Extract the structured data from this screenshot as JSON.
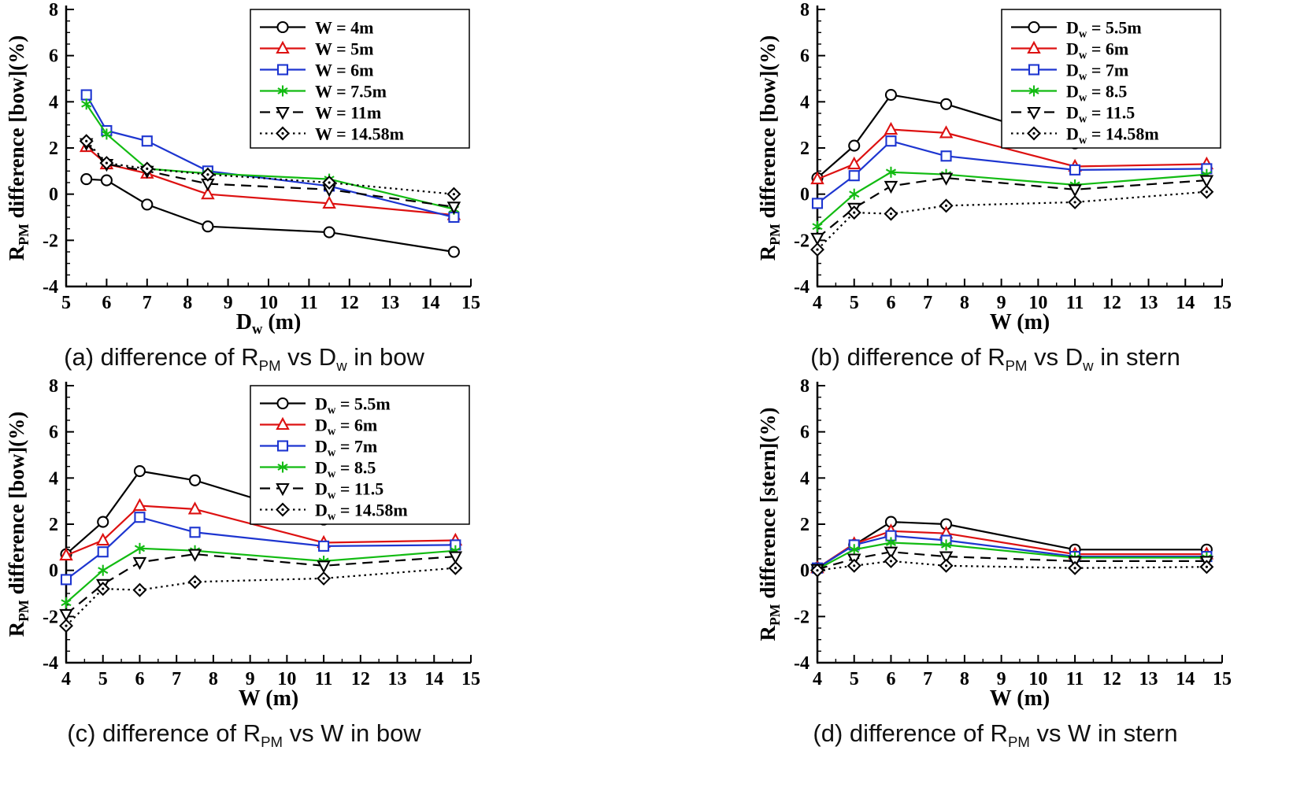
{
  "colors": {
    "black": "#000000",
    "red": "#dd1111",
    "blue": "#1d35d0",
    "green": "#12bb12"
  },
  "panels": [
    {
      "caption": [
        {
          "t": "(a) difference of R"
        },
        {
          "t": "PM",
          "sub": true
        },
        {
          "t": " vs D"
        },
        {
          "t": "w",
          "sub": true
        },
        {
          "t": " in bow"
        }
      ]
    },
    {
      "caption": [
        {
          "t": "(b) difference of R"
        },
        {
          "t": "PM",
          "sub": true
        },
        {
          "t": " vs D"
        },
        {
          "t": "w",
          "sub": true
        },
        {
          "t": " in stern"
        }
      ]
    },
    {
      "caption": [
        {
          "t": "(c) difference of R"
        },
        {
          "t": "PM",
          "sub": true
        },
        {
          "t": " vs W in bow"
        }
      ]
    },
    {
      "caption": [
        {
          "t": "(d) difference of R"
        },
        {
          "t": "PM",
          "sub": true
        },
        {
          "t": " vs W in stern"
        }
      ]
    }
  ],
  "chart_data": [
    {
      "type": "line",
      "xlabel": [
        {
          "t": "D"
        },
        {
          "t": "w",
          "sub": true
        },
        {
          "t": " (m)"
        }
      ],
      "ylabel": [
        {
          "t": "R"
        },
        {
          "t": "PM",
          "sub": true
        },
        {
          "t": " difference [bow](%)"
        }
      ],
      "xlim": [
        5,
        15
      ],
      "ylim": [
        -4,
        8
      ],
      "xticks": [
        5,
        6,
        7,
        8,
        9,
        10,
        11,
        12,
        13,
        14,
        15
      ],
      "yticks": [
        -4,
        -2,
        0,
        2,
        4,
        6,
        8
      ],
      "x_minor": 0.5,
      "y_minor": 0.5,
      "grid": false,
      "legend": {
        "show": true,
        "position": "top-right"
      },
      "series": [
        {
          "label": [
            {
              "t": "W = 4m"
            }
          ],
          "color": "black",
          "marker": "circle",
          "line": "solid",
          "x": [
            5.5,
            6,
            7,
            8.5,
            11.5,
            14.58
          ],
          "y": [
            0.65,
            0.6,
            -0.45,
            -1.4,
            -1.65,
            -2.5
          ]
        },
        {
          "label": [
            {
              "t": "W = 5m"
            }
          ],
          "color": "red",
          "marker": "triangle",
          "line": "solid",
          "x": [
            5.5,
            6,
            7,
            8.5,
            11.5,
            14.58
          ],
          "y": [
            2.05,
            1.3,
            0.9,
            0.0,
            -0.4,
            -0.9
          ]
        },
        {
          "label": [
            {
              "t": "W = 6m"
            }
          ],
          "color": "blue",
          "marker": "square",
          "line": "solid",
          "x": [
            5.5,
            6,
            7,
            8.5,
            11.5,
            14.58
          ],
          "y": [
            4.3,
            2.75,
            2.3,
            1.0,
            0.35,
            -1.0
          ]
        },
        {
          "label": [
            {
              "t": "W = 7.5m"
            }
          ],
          "color": "green",
          "marker": "asterisk",
          "line": "solid",
          "x": [
            5.5,
            6,
            7,
            8.5,
            11.5,
            14.58
          ],
          "y": [
            3.9,
            2.6,
            1.1,
            0.9,
            0.65,
            -0.65
          ]
        },
        {
          "label": [
            {
              "t": "W = 11m"
            }
          ],
          "color": "black",
          "marker": "triangle-down",
          "line": "dashed",
          "x": [
            5.5,
            6,
            7,
            8.5,
            11.5,
            14.58
          ],
          "y": [
            2.2,
            1.3,
            1.0,
            0.45,
            0.2,
            -0.55
          ]
        },
        {
          "label": [
            {
              "t": "W = 14.58m"
            }
          ],
          "color": "black",
          "marker": "diamond",
          "line": "dotted",
          "x": [
            5.5,
            6,
            7,
            8.5,
            11.5,
            14.58
          ],
          "y": [
            2.3,
            1.35,
            1.1,
            0.85,
            0.5,
            0.0
          ]
        }
      ]
    },
    {
      "type": "line",
      "xlabel": [
        {
          "t": "W (m)"
        }
      ],
      "ylabel": [
        {
          "t": "R"
        },
        {
          "t": "PM",
          "sub": true
        },
        {
          "t": " difference [bow](%)"
        }
      ],
      "xlim": [
        4,
        15
      ],
      "ylim": [
        -4,
        8
      ],
      "xticks": [
        4,
        5,
        6,
        7,
        8,
        9,
        10,
        11,
        12,
        13,
        14,
        15
      ],
      "yticks": [
        -4,
        -2,
        0,
        2,
        4,
        6,
        8
      ],
      "x_minor": 0.5,
      "y_minor": 0.5,
      "grid": false,
      "legend": {
        "show": true,
        "position": "top-right"
      },
      "series": [
        {
          "label": [
            {
              "t": "D"
            },
            {
              "t": "w",
              "sub": true
            },
            {
              "t": " = 5.5m"
            }
          ],
          "color": "black",
          "marker": "circle",
          "line": "solid",
          "x": [
            4,
            5,
            6,
            7.5,
            11,
            14.58
          ],
          "y": [
            0.7,
            2.1,
            4.3,
            3.9,
            2.2,
            2.35
          ]
        },
        {
          "label": [
            {
              "t": "D"
            },
            {
              "t": "w",
              "sub": true
            },
            {
              "t": " = 6m"
            }
          ],
          "color": "red",
          "marker": "triangle",
          "line": "solid",
          "x": [
            4,
            5,
            6,
            7.5,
            11,
            14.58
          ],
          "y": [
            0.65,
            1.3,
            2.8,
            2.65,
            1.2,
            1.3
          ]
        },
        {
          "label": [
            {
              "t": "D"
            },
            {
              "t": "w",
              "sub": true
            },
            {
              "t": " = 7m"
            }
          ],
          "color": "blue",
          "marker": "square",
          "line": "solid",
          "x": [
            4,
            5,
            6,
            7.5,
            11,
            14.58
          ],
          "y": [
            -0.4,
            0.8,
            2.3,
            1.65,
            1.05,
            1.1
          ]
        },
        {
          "label": [
            {
              "t": "D"
            },
            {
              "t": "w",
              "sub": true
            },
            {
              "t": " =  8.5"
            }
          ],
          "color": "green",
          "marker": "asterisk",
          "line": "solid",
          "x": [
            4,
            5,
            6,
            7.5,
            11,
            14.58
          ],
          "y": [
            -1.4,
            0.0,
            0.95,
            0.85,
            0.4,
            0.85
          ]
        },
        {
          "label": [
            {
              "t": "D"
            },
            {
              "t": "w",
              "sub": true
            },
            {
              "t": " = 11.5"
            }
          ],
          "color": "black",
          "marker": "triangle-down",
          "line": "dashed",
          "x": [
            4,
            5,
            6,
            7.5,
            11,
            14.58
          ],
          "y": [
            -1.9,
            -0.6,
            0.35,
            0.7,
            0.2,
            0.6
          ]
        },
        {
          "label": [
            {
              "t": "D"
            },
            {
              "t": "w",
              "sub": true
            },
            {
              "t": " = 14.58m"
            }
          ],
          "color": "black",
          "marker": "diamond",
          "line": "dotted",
          "x": [
            4,
            5,
            6,
            7.5,
            11,
            14.58
          ],
          "y": [
            -2.4,
            -0.8,
            -0.85,
            -0.5,
            -0.35,
            0.1
          ]
        }
      ]
    },
    {
      "type": "line",
      "xlabel": [
        {
          "t": "W (m)"
        }
      ],
      "ylabel": [
        {
          "t": "R"
        },
        {
          "t": "PM",
          "sub": true
        },
        {
          "t": " difference [bow](%)"
        }
      ],
      "xlim": [
        4,
        15
      ],
      "ylim": [
        -4,
        8
      ],
      "xticks": [
        4,
        5,
        6,
        7,
        8,
        9,
        10,
        11,
        12,
        13,
        14,
        15
      ],
      "yticks": [
        -4,
        -2,
        0,
        2,
        4,
        6,
        8
      ],
      "x_minor": 0.5,
      "y_minor": 0.5,
      "grid": false,
      "legend": {
        "show": true,
        "position": "top-right"
      },
      "series": [
        {
          "label": [
            {
              "t": "D"
            },
            {
              "t": "w",
              "sub": true
            },
            {
              "t": " = 5.5m"
            }
          ],
          "color": "black",
          "marker": "circle",
          "line": "solid",
          "x": [
            4,
            5,
            6,
            7.5,
            11,
            14.58
          ],
          "y": [
            0.7,
            2.1,
            4.3,
            3.9,
            2.2,
            2.35
          ]
        },
        {
          "label": [
            {
              "t": "D"
            },
            {
              "t": "w",
              "sub": true
            },
            {
              "t": " = 6m"
            }
          ],
          "color": "red",
          "marker": "triangle",
          "line": "solid",
          "x": [
            4,
            5,
            6,
            7.5,
            11,
            14.58
          ],
          "y": [
            0.65,
            1.3,
            2.8,
            2.65,
            1.2,
            1.3
          ]
        },
        {
          "label": [
            {
              "t": "D"
            },
            {
              "t": "w",
              "sub": true
            },
            {
              "t": " = 7m"
            }
          ],
          "color": "blue",
          "marker": "square",
          "line": "solid",
          "x": [
            4,
            5,
            6,
            7.5,
            11,
            14.58
          ],
          "y": [
            -0.4,
            0.8,
            2.3,
            1.65,
            1.05,
            1.1
          ]
        },
        {
          "label": [
            {
              "t": "D"
            },
            {
              "t": "w",
              "sub": true
            },
            {
              "t": " =  8.5"
            }
          ],
          "color": "green",
          "marker": "asterisk",
          "line": "solid",
          "x": [
            4,
            5,
            6,
            7.5,
            11,
            14.58
          ],
          "y": [
            -1.4,
            0.0,
            0.95,
            0.85,
            0.4,
            0.85
          ]
        },
        {
          "label": [
            {
              "t": "D"
            },
            {
              "t": "w",
              "sub": true
            },
            {
              "t": " = 11.5"
            }
          ],
          "color": "black",
          "marker": "triangle-down",
          "line": "dashed",
          "x": [
            4,
            5,
            6,
            7.5,
            11,
            14.58
          ],
          "y": [
            -1.9,
            -0.6,
            0.35,
            0.7,
            0.2,
            0.6
          ]
        },
        {
          "label": [
            {
              "t": "D"
            },
            {
              "t": "w",
              "sub": true
            },
            {
              "t": " = 14.58m"
            }
          ],
          "color": "black",
          "marker": "diamond",
          "line": "dotted",
          "x": [
            4,
            5,
            6,
            7.5,
            11,
            14.58
          ],
          "y": [
            -2.4,
            -0.8,
            -0.85,
            -0.5,
            -0.35,
            0.1
          ]
        }
      ]
    },
    {
      "type": "line",
      "xlabel": [
        {
          "t": "W (m)"
        }
      ],
      "ylabel": [
        {
          "t": "R"
        },
        {
          "t": "PM",
          "sub": true
        },
        {
          "t": " difference [stern](%)"
        }
      ],
      "xlim": [
        4,
        15
      ],
      "ylim": [
        -4,
        8
      ],
      "xticks": [
        4,
        5,
        6,
        7,
        8,
        9,
        10,
        11,
        12,
        13,
        14,
        15
      ],
      "yticks": [
        -4,
        -2,
        0,
        2,
        4,
        6,
        8
      ],
      "x_minor": 0.5,
      "y_minor": 0.5,
      "grid": false,
      "legend": {
        "show": false
      },
      "series": [
        {
          "label": [
            {
              "t": "D"
            },
            {
              "t": "w",
              "sub": true
            },
            {
              "t": " = 5.5m"
            }
          ],
          "color": "black",
          "marker": "circle",
          "line": "solid",
          "x": [
            4,
            5,
            6,
            7.5,
            11,
            14.58
          ],
          "y": [
            0.1,
            1.1,
            2.1,
            2.0,
            0.9,
            0.9
          ]
        },
        {
          "label": [
            {
              "t": "D"
            },
            {
              "t": "w",
              "sub": true
            },
            {
              "t": " = 6m"
            }
          ],
          "color": "red",
          "marker": "triangle",
          "line": "solid",
          "x": [
            4,
            5,
            6,
            7.5,
            11,
            14.58
          ],
          "y": [
            0.1,
            1.15,
            1.7,
            1.6,
            0.7,
            0.7
          ]
        },
        {
          "label": [
            {
              "t": "D"
            },
            {
              "t": "w",
              "sub": true
            },
            {
              "t": " = 7m"
            }
          ],
          "color": "blue",
          "marker": "square",
          "line": "solid",
          "x": [
            4,
            5,
            6,
            7.5,
            11,
            14.58
          ],
          "y": [
            0.1,
            1.1,
            1.5,
            1.3,
            0.6,
            0.6
          ]
        },
        {
          "label": [
            {
              "t": "D"
            },
            {
              "t": "w",
              "sub": true
            },
            {
              "t": " =  8.5"
            }
          ],
          "color": "green",
          "marker": "asterisk",
          "line": "solid",
          "x": [
            4,
            5,
            6,
            7.5,
            11,
            14.58
          ],
          "y": [
            0.05,
            0.9,
            1.2,
            1.1,
            0.55,
            0.55
          ]
        },
        {
          "label": [
            {
              "t": "D"
            },
            {
              "t": "w",
              "sub": true
            },
            {
              "t": " = 11.5"
            }
          ],
          "color": "black",
          "marker": "triangle-down",
          "line": "dashed",
          "x": [
            4,
            5,
            6,
            7.5,
            11,
            14.58
          ],
          "y": [
            0.05,
            0.5,
            0.8,
            0.6,
            0.4,
            0.4
          ]
        },
        {
          "label": [
            {
              "t": "D"
            },
            {
              "t": "w",
              "sub": true
            },
            {
              "t": " = 14.58m"
            }
          ],
          "color": "black",
          "marker": "diamond",
          "line": "dotted",
          "x": [
            4,
            5,
            6,
            7.5,
            11,
            14.58
          ],
          "y": [
            0.0,
            0.2,
            0.4,
            0.2,
            0.1,
            0.15
          ]
        }
      ]
    }
  ]
}
